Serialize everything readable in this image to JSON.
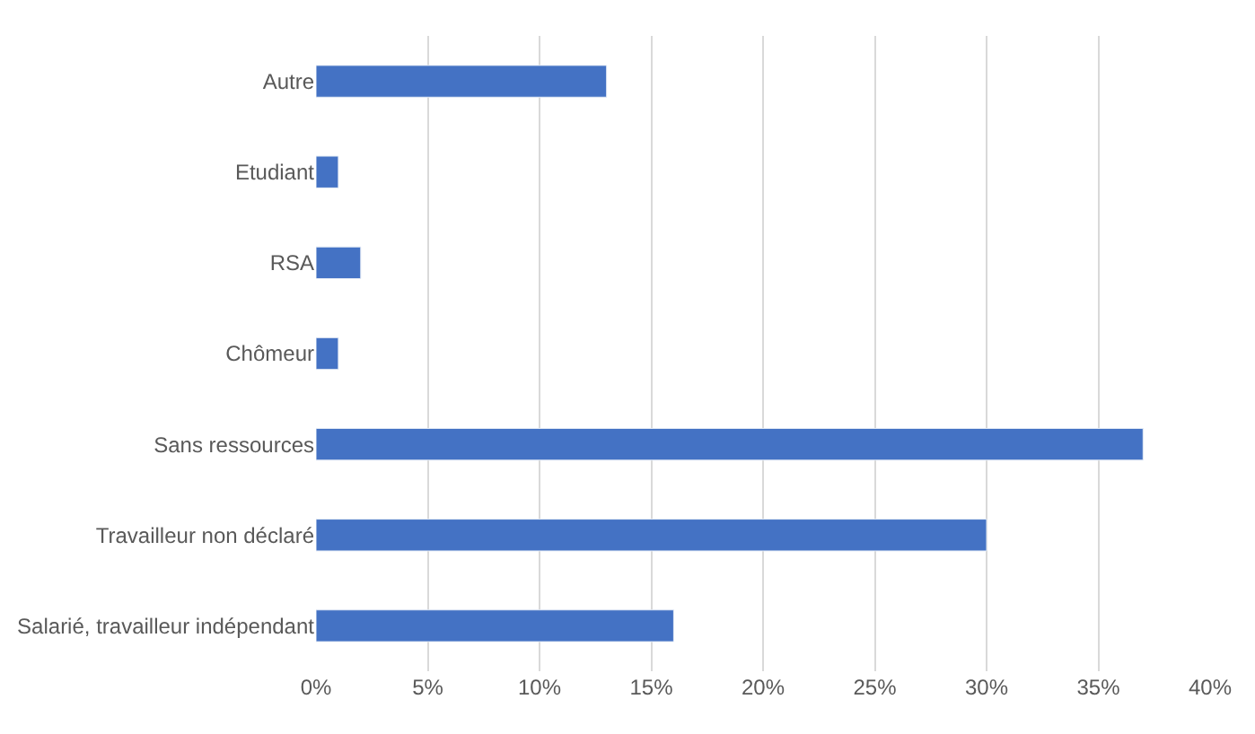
{
  "chart_data": {
    "type": "bar",
    "orientation": "horizontal",
    "categories": [
      "Autre",
      "Etudiant",
      "RSA",
      "Chômeur",
      "Sans ressources",
      "Travailleur non déclaré",
      "Salarié, travailleur indépendant"
    ],
    "values": [
      13,
      1,
      2,
      1,
      37,
      30,
      16
    ],
    "color": "#4472c4",
    "xlim": [
      0,
      40
    ],
    "xticks": [
      {
        "value": 0,
        "label": "0%"
      },
      {
        "value": 5,
        "label": "5%"
      },
      {
        "value": 10,
        "label": "10%"
      },
      {
        "value": 15,
        "label": "15%"
      },
      {
        "value": 20,
        "label": "20%"
      },
      {
        "value": 25,
        "label": "25%"
      },
      {
        "value": 30,
        "label": "30%"
      },
      {
        "value": 35,
        "label": "35%"
      },
      {
        "value": 40,
        "label": "40%"
      }
    ],
    "grid": "x",
    "legend": false
  }
}
